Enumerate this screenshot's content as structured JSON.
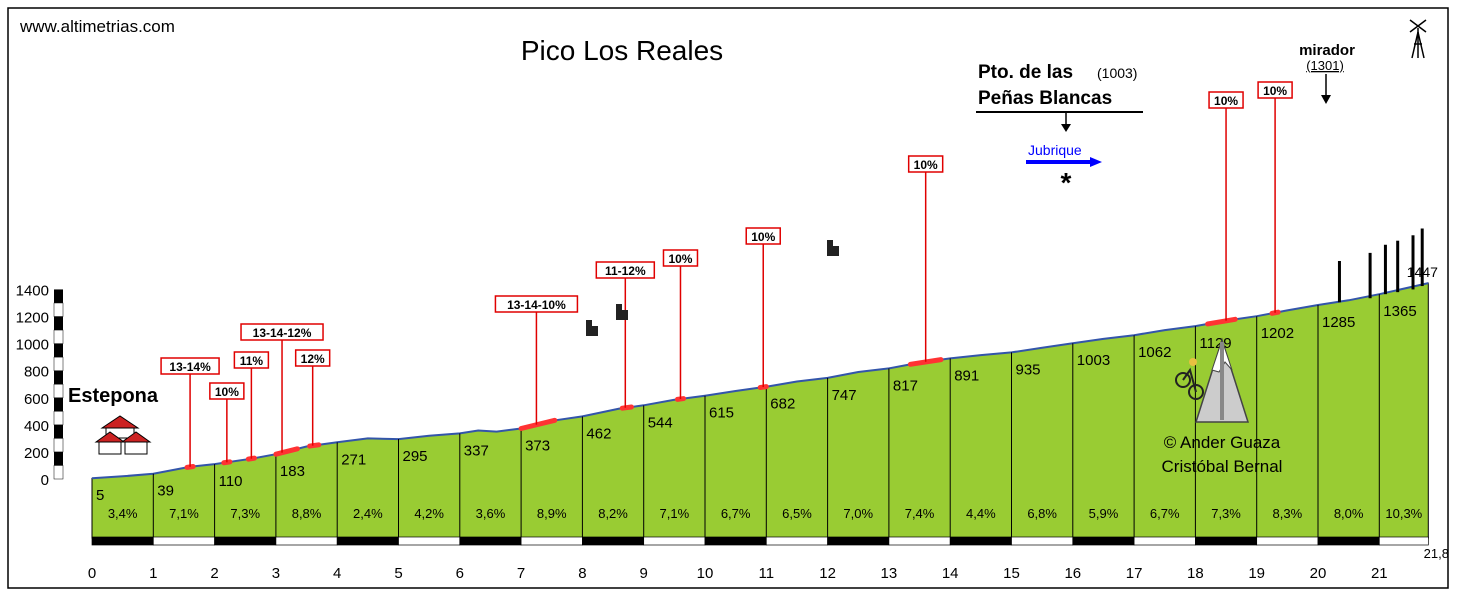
{
  "chart_data": {
    "type": "area",
    "website": "www.altimetrias.com",
    "title": "Pico Los Reales",
    "credit": [
      "© Ander Guaza",
      "Cristóbal Bernal"
    ],
    "ylim": [
      0,
      1400
    ],
    "y_ticks": [
      0,
      200,
      400,
      600,
      800,
      1000,
      1200,
      1400
    ],
    "xlim": [
      0,
      21.8
    ],
    "x_ticks": [
      "0",
      "1",
      "2",
      "3",
      "4",
      "5",
      "6",
      "7",
      "8",
      "9",
      "10",
      "11",
      "12",
      "13",
      "14",
      "15",
      "16",
      "17",
      "18",
      "19",
      "20",
      "21"
    ],
    "x_end_label": "21,8",
    "profile": [
      [
        0,
        5
      ],
      [
        0.5,
        20
      ],
      [
        1,
        39
      ],
      [
        1.6,
        90
      ],
      [
        2,
        110
      ],
      [
        2.6,
        150
      ],
      [
        3,
        183
      ],
      [
        3.5,
        240
      ],
      [
        4,
        271
      ],
      [
        4.5,
        300
      ],
      [
        5,
        295
      ],
      [
        5.5,
        320
      ],
      [
        6,
        337
      ],
      [
        6.3,
        358
      ],
      [
        6.6,
        350
      ],
      [
        7,
        373
      ],
      [
        7.5,
        430
      ],
      [
        8,
        462
      ],
      [
        8.6,
        520
      ],
      [
        9,
        544
      ],
      [
        9.5,
        585
      ],
      [
        10,
        615
      ],
      [
        10.5,
        650
      ],
      [
        11,
        682
      ],
      [
        11.5,
        720
      ],
      [
        12,
        747
      ],
      [
        12.5,
        790
      ],
      [
        13,
        817
      ],
      [
        13.5,
        860
      ],
      [
        14,
        891
      ],
      [
        14.5,
        915
      ],
      [
        15,
        935
      ],
      [
        15.5,
        970
      ],
      [
        16,
        1003
      ],
      [
        16.5,
        1035
      ],
      [
        17,
        1062
      ],
      [
        17.5,
        1100
      ],
      [
        18,
        1129
      ],
      [
        18.5,
        1170
      ],
      [
        19,
        1202
      ],
      [
        19.5,
        1245
      ],
      [
        20,
        1285
      ],
      [
        20.5,
        1320
      ],
      [
        21,
        1365
      ],
      [
        21.8,
        1447
      ]
    ],
    "km_altitudes": [
      {
        "km": 0,
        "label": "5"
      },
      {
        "km": 1,
        "label": "39"
      },
      {
        "km": 2,
        "label": "110"
      },
      {
        "km": 3,
        "label": "183"
      },
      {
        "km": 4,
        "label": "271"
      },
      {
        "km": 5,
        "label": "295"
      },
      {
        "km": 6,
        "label": "337"
      },
      {
        "km": 7,
        "label": "373"
      },
      {
        "km": 8,
        "label": "462"
      },
      {
        "km": 9,
        "label": "544"
      },
      {
        "km": 10,
        "label": "615"
      },
      {
        "km": 11,
        "label": "682"
      },
      {
        "km": 12,
        "label": "747"
      },
      {
        "km": 13,
        "label": "817"
      },
      {
        "km": 14,
        "label": "891"
      },
      {
        "km": 15,
        "label": "935"
      },
      {
        "km": 16,
        "label": "1003"
      },
      {
        "km": 17,
        "label": "1062"
      },
      {
        "km": 18,
        "label": "1129"
      },
      {
        "km": 19,
        "label": "1202"
      },
      {
        "km": 20,
        "label": "1285"
      },
      {
        "km": 21,
        "label": "1365"
      }
    ],
    "summit_label": "1447",
    "segment_gradients": [
      "3,4%",
      "7,1%",
      "7,3%",
      "8,8%",
      "2,4%",
      "4,2%",
      "3,6%",
      "8,9%",
      "8,2%",
      "7,1%",
      "6,7%",
      "6,5%",
      "7,0%",
      "7,4%",
      "4,4%",
      "6,8%",
      "5,9%",
      "6,7%",
      "7,3%",
      "8,3%",
      "8,0%",
      "10,3%"
    ],
    "steep_sections": [
      {
        "label": "13-14%",
        "km": 1.6,
        "from": 1.55,
        "to": 1.65
      },
      {
        "label": "10%",
        "km": 2.2,
        "from": 2.15,
        "to": 2.25
      },
      {
        "label": "11%",
        "km": 2.6,
        "from": 2.55,
        "to": 2.65
      },
      {
        "label": "13-14-12%",
        "km": 3.1,
        "from": 3.0,
        "to": 3.35
      },
      {
        "label": "12%",
        "km": 3.6,
        "from": 3.55,
        "to": 3.7
      },
      {
        "label": "13-14-10%",
        "km": 7.25,
        "from": 7.0,
        "to": 7.55
      },
      {
        "label": "11-12%",
        "km": 8.7,
        "from": 8.65,
        "to": 8.8
      },
      {
        "label": "10%",
        "km": 9.6,
        "from": 9.55,
        "to": 9.65
      },
      {
        "label": "10%",
        "km": 10.95,
        "from": 10.9,
        "to": 11.0
      },
      {
        "label": "10%",
        "km": 13.6,
        "from": 13.35,
        "to": 13.85
      },
      {
        "label": "10%",
        "km": 18.5,
        "from": 18.2,
        "to": 18.65
      },
      {
        "label": "10%",
        "km": 19.3,
        "from": 19.25,
        "to": 19.35
      }
    ],
    "places": {
      "start": "Estepona",
      "pass_line1": "Pto. de las",
      "pass_alt": "(1003)",
      "pass_line2": "Peñas Blancas",
      "junction": "Jubrique",
      "mirador": "mirador",
      "mirador_alt": "(1301)"
    },
    "colors": {
      "fill": "#99cc33",
      "profile_line": "#3355aa",
      "steep_box": "#e00000",
      "steep_mark": "#ff3333",
      "arrow": "#0000ff"
    }
  }
}
